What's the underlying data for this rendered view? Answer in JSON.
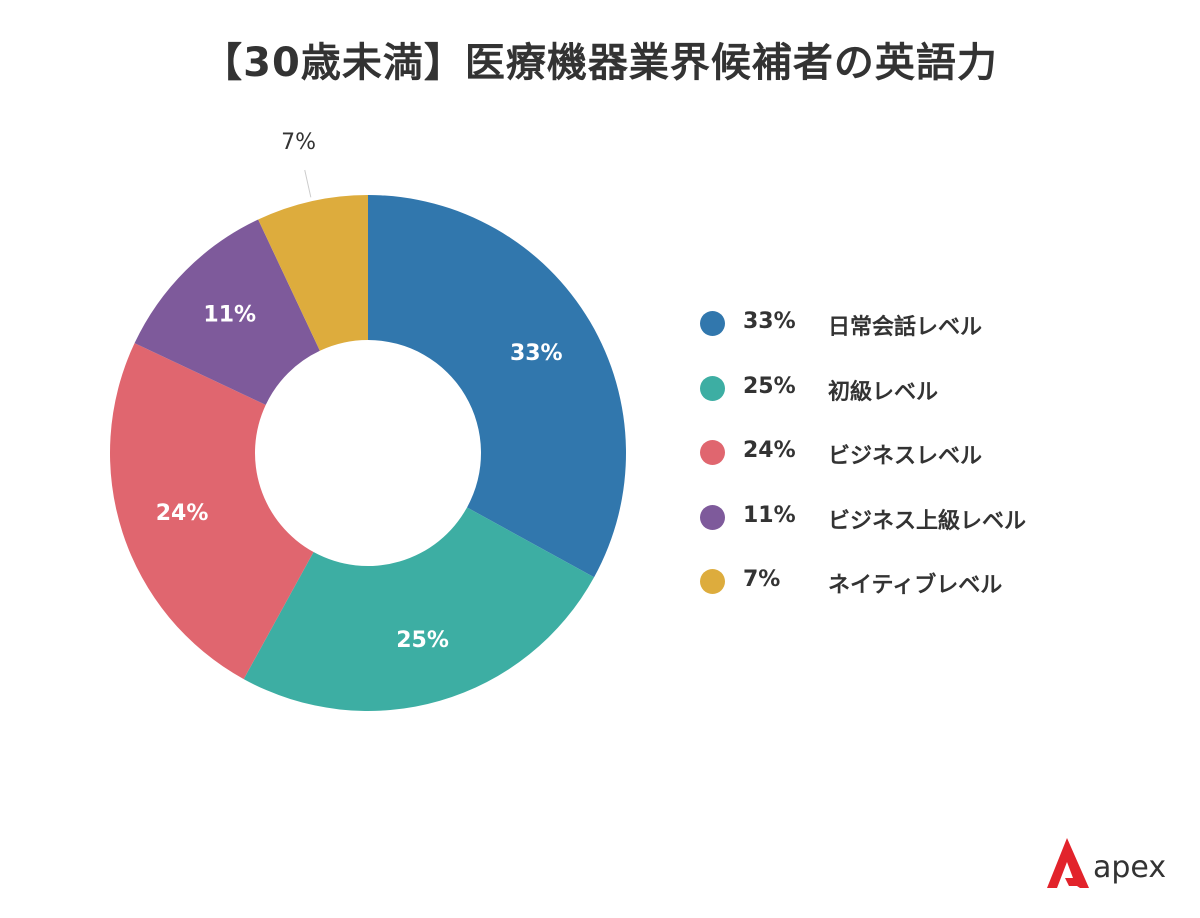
{
  "chart_data": {
    "type": "pie",
    "title": "【30歳未満】医療機器業界候補者の英語力",
    "donut": true,
    "legend_position": "right",
    "slices": [
      {
        "label": "日常会話レベル",
        "value": 33,
        "display": "33%",
        "color": "#3177AD"
      },
      {
        "label": "初級レベル",
        "value": 25,
        "display": "25%",
        "color": "#3DAEA3"
      },
      {
        "label": "ビジネスレベル",
        "value": 24,
        "display": "24%",
        "color": "#E0666F"
      },
      {
        "label": "ビジネス上級レベル",
        "value": 11,
        "display": "11%",
        "color": "#7E5A9B"
      },
      {
        "label": "ネイティブレベル",
        "value": 7,
        "display": "7%",
        "color": "#DDAC3D"
      }
    ]
  },
  "brand": {
    "name": "apex",
    "color": "#E2232B"
  }
}
